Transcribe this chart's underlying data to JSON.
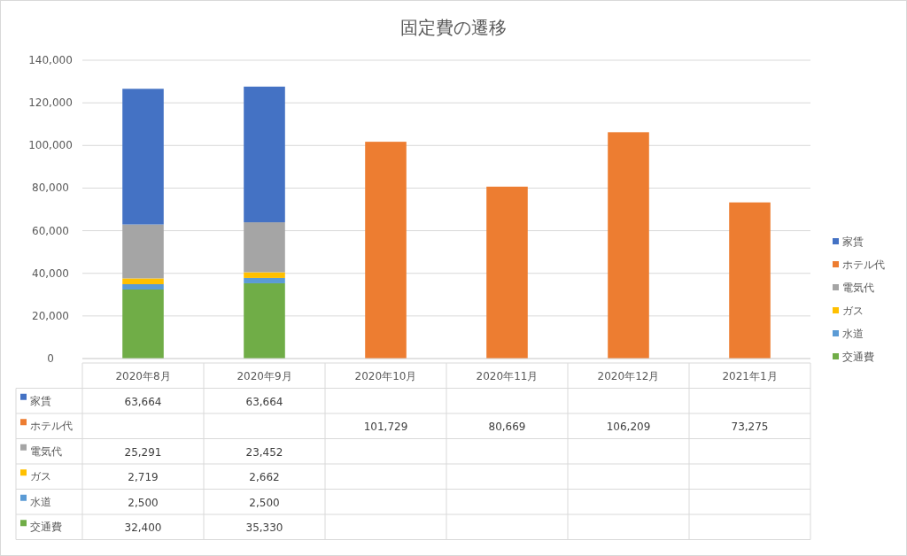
{
  "chart_data": {
    "type": "bar",
    "title": "固定費の遷移",
    "stacked": true,
    "categories": [
      "2020年8月",
      "2020年9月",
      "2020年10月",
      "2020年11月",
      "2020年12月",
      "2021年1月"
    ],
    "series": [
      {
        "name": "交通費",
        "color": "#70ad47",
        "values": [
          32400,
          35330,
          null,
          null,
          null,
          null
        ],
        "value_labels": [
          "32,400",
          "35,330",
          null,
          null,
          null,
          null
        ]
      },
      {
        "name": "水道",
        "color": "#5b9bd5",
        "values": [
          2500,
          2500,
          null,
          null,
          null,
          null
        ],
        "value_labels": [
          "2,500",
          "2,500",
          null,
          null,
          null,
          null
        ]
      },
      {
        "name": "ガス",
        "color": "#ffc000",
        "values": [
          2719,
          2662,
          null,
          null,
          null,
          null
        ],
        "value_labels": [
          "2,719",
          "2,662",
          null,
          null,
          null,
          null
        ]
      },
      {
        "name": "電気代",
        "color": "#a5a5a5",
        "values": [
          25291,
          23452,
          null,
          null,
          null,
          null
        ],
        "value_labels": [
          "25,291",
          "23,452",
          null,
          null,
          null,
          null
        ]
      },
      {
        "name": "ホテル代",
        "color": "#ed7d31",
        "values": [
          null,
          null,
          101729,
          80669,
          106209,
          73275
        ],
        "value_labels": [
          null,
          null,
          "101,729",
          "80,669",
          "106,209",
          "73,275"
        ]
      },
      {
        "name": "家賃",
        "color": "#4472c4",
        "values": [
          63664,
          63664,
          null,
          null,
          null,
          null
        ],
        "value_labels": [
          "63,664",
          "63,664",
          null,
          null,
          null,
          null
        ]
      }
    ],
    "ylim": [
      0,
      140000
    ],
    "yticks": [
      0,
      {
        "value": 20000,
        "label": "20,000"
      },
      {
        "value": 40000,
        "label": "40,000"
      },
      {
        "value": 60000,
        "label": "60,000"
      },
      {
        "value": 80000,
        "label": "80,000"
      },
      {
        "value": 100000,
        "label": "100,000"
      },
      {
        "value": 120000,
        "label": "120,000"
      },
      {
        "value": 140000,
        "label": "140,000"
      }
    ],
    "grid": "y",
    "legend": "right"
  }
}
